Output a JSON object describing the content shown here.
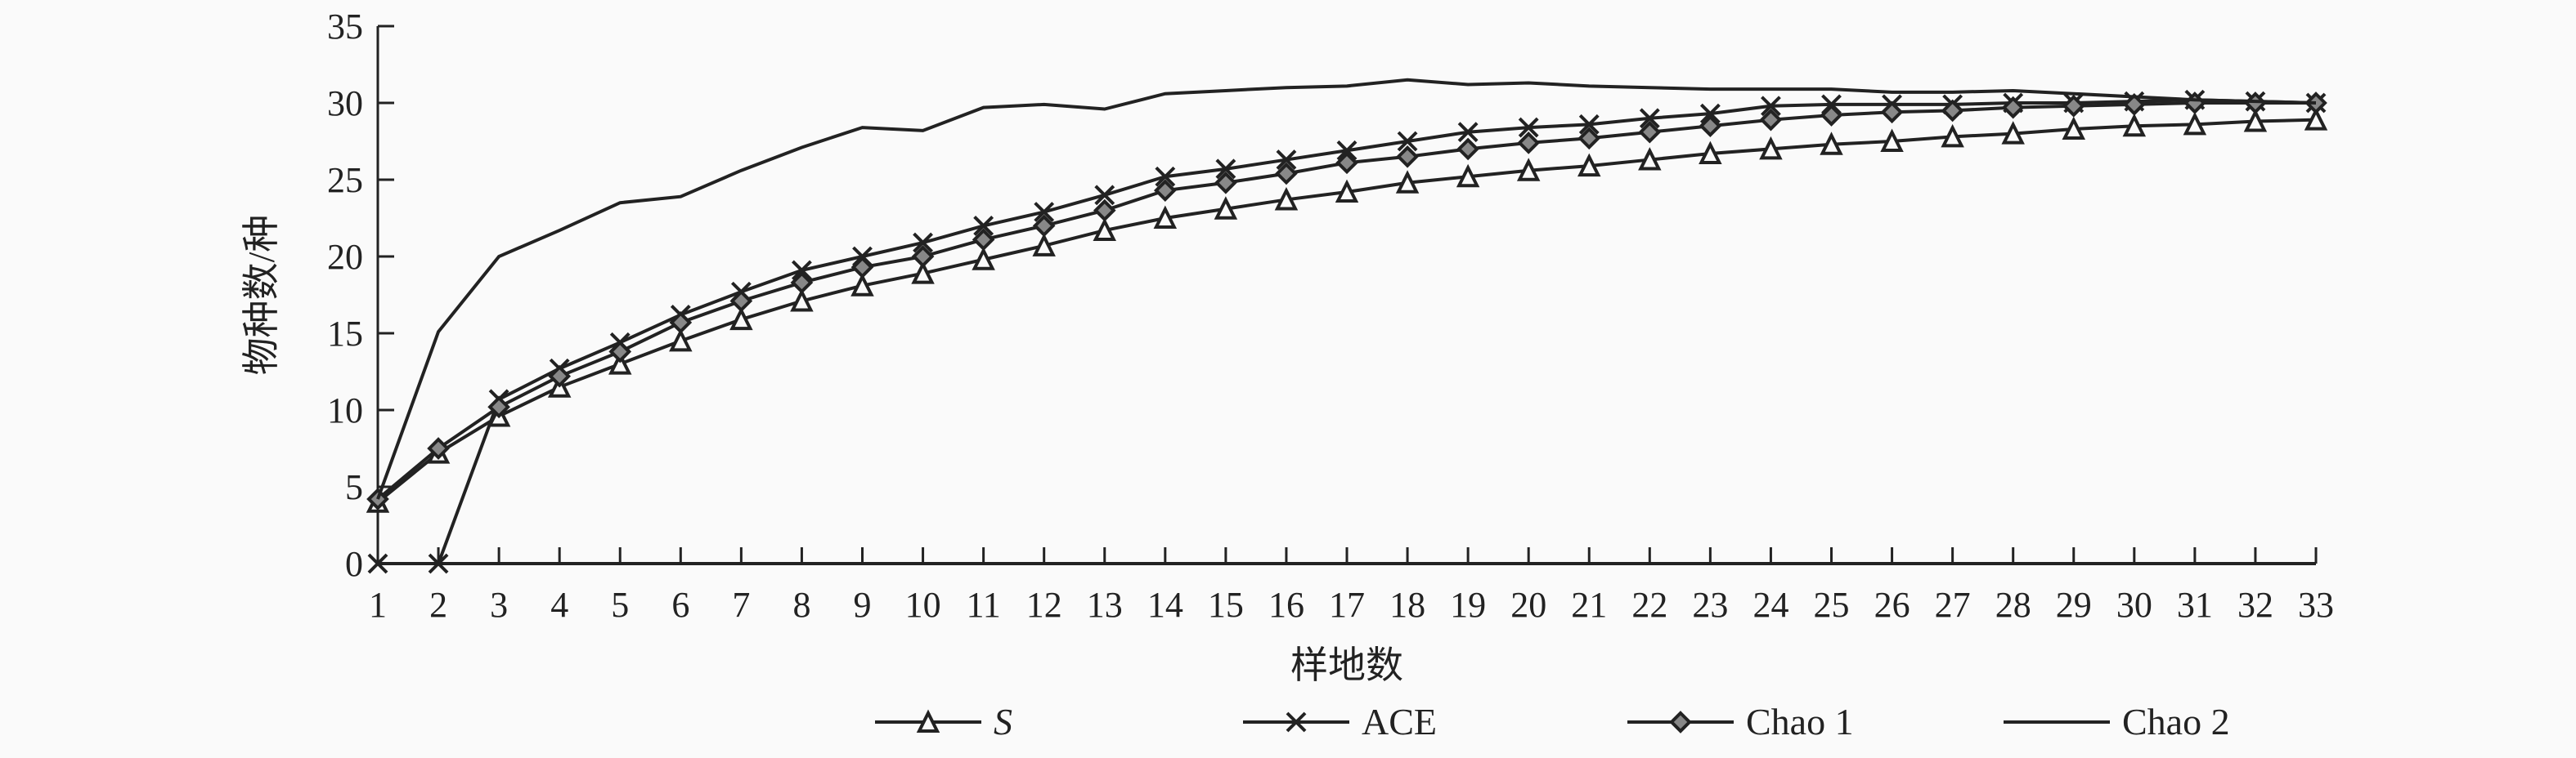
{
  "chart_data": {
    "type": "line",
    "xlabel": "样地数",
    "ylabel": "物种数/种",
    "ylim": [
      0,
      35
    ],
    "yticks": [
      0,
      5,
      10,
      15,
      20,
      25,
      30,
      35
    ],
    "x": [
      1,
      2,
      3,
      4,
      5,
      6,
      7,
      8,
      9,
      10,
      11,
      12,
      13,
      14,
      15,
      16,
      17,
      18,
      19,
      20,
      21,
      22,
      23,
      24,
      25,
      26,
      27,
      28,
      29,
      30,
      31,
      32,
      33
    ],
    "grid": false,
    "legend_placement": "bottom",
    "series": [
      {
        "name": "S",
        "marker": "triangle",
        "values": [
          4,
          7.2,
          9.6,
          11.5,
          13,
          14.5,
          15.9,
          17.1,
          18.1,
          18.9,
          19.8,
          20.7,
          21.7,
          22.5,
          23.1,
          23.7,
          24.2,
          24.8,
          25.2,
          25.6,
          25.9,
          26.3,
          26.7,
          27.0,
          27.3,
          27.5,
          27.8,
          28.0,
          28.3,
          28.5,
          28.6,
          28.8,
          28.9
        ]
      },
      {
        "name": "ACE",
        "marker": "cross",
        "values": [
          0,
          0,
          10.7,
          12.7,
          14.4,
          16.2,
          17.7,
          19.1,
          20.0,
          20.9,
          22.0,
          22.9,
          24.0,
          25.2,
          25.7,
          26.3,
          26.9,
          27.5,
          28.1,
          28.4,
          28.6,
          29.0,
          29.3,
          29.8,
          29.9,
          29.9,
          29.9,
          30.0,
          30.0,
          30.1,
          30.2,
          30.1,
          30.0
        ]
      },
      {
        "name": "Chao 1",
        "marker": "diamond",
        "values": [
          4.2,
          7.5,
          10.2,
          12.2,
          13.8,
          15.7,
          17.1,
          18.3,
          19.3,
          20.0,
          21.1,
          22.0,
          23.0,
          24.3,
          24.8,
          25.4,
          26.1,
          26.5,
          27.0,
          27.4,
          27.7,
          28.1,
          28.5,
          28.9,
          29.2,
          29.4,
          29.5,
          29.7,
          29.8,
          29.9,
          30.0,
          30.0,
          30.0
        ]
      },
      {
        "name": "Chao 2",
        "marker": "none",
        "values": [
          4.2,
          15.1,
          20.0,
          21.7,
          23.5,
          23.9,
          25.6,
          27.1,
          28.4,
          28.2,
          29.7,
          29.9,
          29.6,
          30.6,
          30.8,
          31.0,
          31.1,
          31.5,
          31.2,
          31.3,
          31.1,
          31.0,
          30.9,
          30.9,
          30.9,
          30.7,
          30.7,
          30.8,
          30.6,
          30.4,
          30.2,
          30.1,
          30.0
        ]
      }
    ],
    "line_color": "#222222"
  }
}
